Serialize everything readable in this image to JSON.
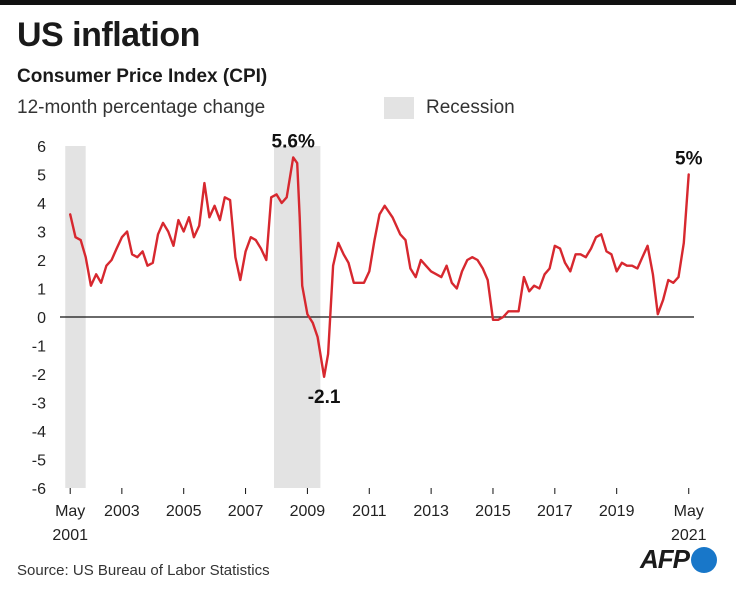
{
  "header": {
    "title": "US inflation",
    "subtitle": "Consumer Price Index (CPI)",
    "unit": "12-month percentage change",
    "legend_recession": "Recession"
  },
  "footer": {
    "source": "Source: US Bureau of Labor Statistics",
    "logo_text": "AFP"
  },
  "colors": {
    "line": "#d7282f",
    "recession": "#e3e3e3",
    "zero_line": "#111111"
  },
  "chart_data": {
    "type": "line",
    "x_unit": "year",
    "ylim": [
      -6,
      6
    ],
    "yticks": [
      "6",
      "5",
      "4",
      "3",
      "2",
      "1",
      "0",
      "-1",
      "-2",
      "-3",
      "-4",
      "-5",
      "-6"
    ],
    "xticks": [
      {
        "x": 2001.33,
        "label": "May",
        "label2": "2001"
      },
      {
        "x": 2003,
        "label": "2003"
      },
      {
        "x": 2005,
        "label": "2005"
      },
      {
        "x": 2007,
        "label": "2007"
      },
      {
        "x": 2009,
        "label": "2009"
      },
      {
        "x": 2011,
        "label": "2011"
      },
      {
        "x": 2013,
        "label": "2013"
      },
      {
        "x": 2015,
        "label": "2015"
      },
      {
        "x": 2017,
        "label": "2017"
      },
      {
        "x": 2019,
        "label": "2019"
      },
      {
        "x": 2021.33,
        "label": "May",
        "label2": "2021"
      }
    ],
    "recessions": [
      [
        2001.17,
        2001.83
      ],
      [
        2007.92,
        2009.42
      ]
    ],
    "annotations": [
      {
        "label": "5.6%",
        "x": 2008.54,
        "y": 5.6,
        "pos": "above"
      },
      {
        "label": "-2.1",
        "x": 2009.54,
        "y": -2.1,
        "pos": "below"
      },
      {
        "label": "5%",
        "x": 2021.33,
        "y": 5.0,
        "pos": "above"
      }
    ],
    "series": [
      {
        "x": [
          2001.33,
          2001.5,
          2001.67,
          2001.83,
          2002.0,
          2002.17,
          2002.33,
          2002.5,
          2002.67,
          2002.83,
          2003.0,
          2003.17,
          2003.33,
          2003.5,
          2003.67,
          2003.83,
          2004.0,
          2004.17,
          2004.33,
          2004.5,
          2004.67,
          2004.83,
          2005.0,
          2005.17,
          2005.33,
          2005.5,
          2005.67,
          2005.83,
          2006.0,
          2006.17,
          2006.33,
          2006.5,
          2006.67,
          2006.83,
          2007.0,
          2007.17,
          2007.33,
          2007.5,
          2007.67,
          2007.83,
          2008.0,
          2008.17,
          2008.33,
          2008.54,
          2008.67,
          2008.75,
          2008.83,
          2009.0,
          2009.17,
          2009.33,
          2009.54,
          2009.67,
          2009.83,
          2010.0,
          2010.17,
          2010.33,
          2010.5,
          2010.67,
          2010.83,
          2011.0,
          2011.17,
          2011.33,
          2011.5,
          2011.75,
          2012.0,
          2012.17,
          2012.33,
          2012.5,
          2012.67,
          2012.83,
          2013.0,
          2013.17,
          2013.33,
          2013.5,
          2013.67,
          2013.83,
          2014.0,
          2014.17,
          2014.33,
          2014.5,
          2014.67,
          2014.83,
          2015.0,
          2015.17,
          2015.33,
          2015.5,
          2015.67,
          2015.83,
          2016.0,
          2016.17,
          2016.33,
          2016.5,
          2016.67,
          2016.83,
          2017.0,
          2017.17,
          2017.33,
          2017.5,
          2017.67,
          2017.83,
          2018.0,
          2018.17,
          2018.33,
          2018.5,
          2018.67,
          2018.83,
          2019.0,
          2019.17,
          2019.33,
          2019.5,
          2019.67,
          2019.83,
          2020.0,
          2020.17,
          2020.33,
          2020.5,
          2020.67,
          2020.83,
          2021.0,
          2021.17,
          2021.33
        ],
        "y": [
          3.6,
          2.8,
          2.7,
          2.1,
          1.1,
          1.5,
          1.2,
          1.8,
          2.0,
          2.4,
          2.8,
          3.0,
          2.2,
          2.1,
          2.3,
          1.8,
          1.9,
          2.9,
          3.3,
          3.0,
          2.5,
          3.4,
          3.0,
          3.5,
          2.8,
          3.2,
          4.7,
          3.5,
          3.9,
          3.4,
          4.2,
          4.1,
          2.1,
          1.3,
          2.3,
          2.8,
          2.7,
          2.4,
          2.0,
          4.2,
          4.3,
          4.0,
          4.2,
          5.6,
          5.4,
          3.5,
          1.1,
          0.1,
          -0.2,
          -0.7,
          -2.1,
          -1.3,
          1.8,
          2.6,
          2.2,
          1.9,
          1.2,
          1.2,
          1.2,
          1.6,
          2.7,
          3.6,
          3.9,
          3.5,
          2.9,
          2.7,
          1.7,
          1.4,
          2.0,
          1.8,
          1.6,
          1.5,
          1.4,
          1.8,
          1.2,
          1.0,
          1.6,
          2.0,
          2.1,
          2.0,
          1.7,
          1.3,
          -0.1,
          -0.1,
          0.0,
          0.2,
          0.2,
          0.2,
          1.4,
          0.9,
          1.1,
          1.0,
          1.5,
          1.7,
          2.5,
          2.4,
          1.9,
          1.6,
          2.2,
          2.2,
          2.1,
          2.4,
          2.8,
          2.9,
          2.3,
          2.2,
          1.6,
          1.9,
          1.8,
          1.8,
          1.7,
          2.1,
          2.5,
          1.5,
          0.1,
          0.6,
          1.3,
          1.2,
          1.4,
          2.6,
          5.0
        ]
      }
    ]
  }
}
